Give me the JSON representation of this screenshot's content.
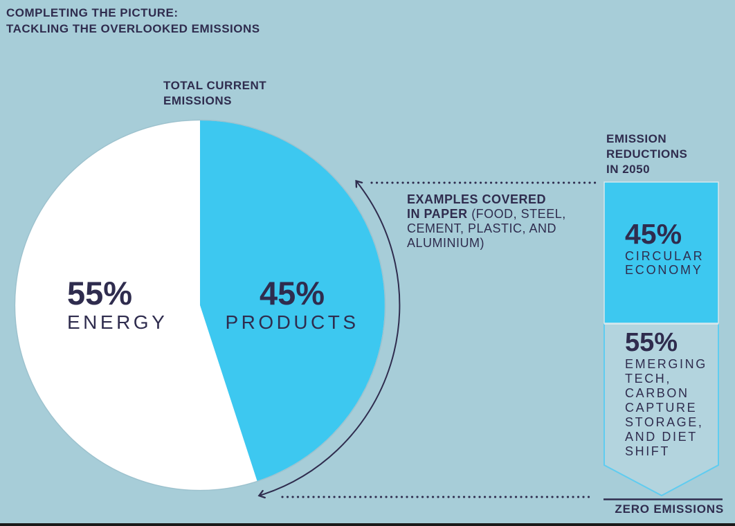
{
  "colors": {
    "background": "#a7cdd8",
    "cyan": "#3dc8f0",
    "navy": "#2f2c4e",
    "white": "#ffffff",
    "pennant_fill": "#b3d4de",
    "pennant_border": "#5fccf0",
    "box_edge": "#d6e7ec",
    "circle_edge": "#8fb3c0",
    "bottom_bar": "#1a1a1a"
  },
  "header": {
    "title_line1": "COMPLETING THE PICTURE:",
    "title_line2": "TACKLING THE OVERLOOKED EMISSIONS"
  },
  "pie_section": {
    "heading_line1": "TOTAL CURRENT",
    "heading_line2": "EMISSIONS",
    "energy_value": "55%",
    "energy_label": "ENERGY",
    "products_value": "45%",
    "products_label": "PRODUCTS"
  },
  "examples_note": {
    "bold_line1": "EXAMPLES COVERED",
    "bold_line2_start": "IN PAPER",
    "line2_rest": " (FOOD, STEEL,",
    "line3": "CEMENT, PLASTIC, AND",
    "line4": "ALUMINIUM)"
  },
  "reductions": {
    "heading_line1": "EMISSION",
    "heading_line2": "REDUCTIONS",
    "heading_line3": "IN 2050",
    "circular_value": "45%",
    "circular_label_line1": "CIRCULAR",
    "circular_label_line2": "ECONOMY",
    "emerging_value": "55%",
    "emerging_lines": [
      "EMERGING",
      "TECH,",
      "CARBON",
      "CAPTURE",
      "STORAGE,",
      "AND DIET",
      "SHIFT"
    ],
    "footer_label": "ZERO EMISSIONS"
  },
  "chart_data": [
    {
      "type": "pie",
      "title": "TOTAL CURRENT EMISSIONS",
      "slices": [
        {
          "label": "ENERGY",
          "value": 55,
          "color": "#ffffff"
        },
        {
          "label": "PRODUCTS",
          "value": 45,
          "color": "#3dc8f0"
        }
      ],
      "annotation": "EXAMPLES COVERED IN PAPER (FOOD, STEEL, CEMENT, PLASTIC, AND ALUMINIUM)",
      "notes": "45% PRODUCTS wedge starts at 12 o'clock and sweeps clockwise; curved double-headed arrow spans the wedge"
    },
    {
      "type": "bar",
      "title": "EMISSION REDUCTIONS IN 2050",
      "stacked": true,
      "orientation": "vertical",
      "segments": [
        {
          "label": "CIRCULAR ECONOMY",
          "value": 45,
          "color": "#3dc8f0"
        },
        {
          "label": "EMERGING TECH, CARBON CAPTURE STORAGE, AND DIET SHIFT",
          "value": 55,
          "color": "#b3d4de"
        }
      ],
      "axis_end_label": "ZERO EMISSIONS"
    }
  ]
}
